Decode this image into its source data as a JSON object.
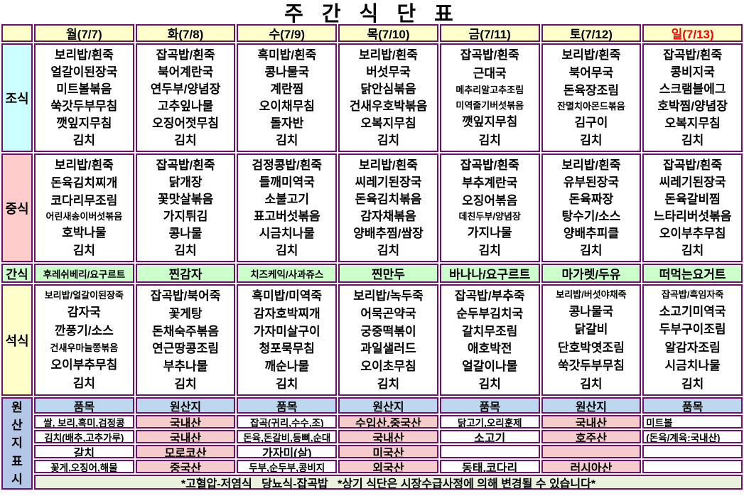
{
  "title": "주 간 식 단 표",
  "colors": {
    "border": "#6B116B",
    "header_bg": "#FFFFCC",
    "breakfast_bg": "#CCFFFF",
    "lunch_bg": "#FFCCCC",
    "snack_bg": "#CCFFCC",
    "dinner_bg": "#FFFFCC",
    "origin_label_bg": "#B4C7E7",
    "origin_header_bg": "#BDD7EE",
    "origin_pink_bg": "#F4CCCC",
    "footer_bg": "#EBF1DE",
    "sunday_red": "#FF0000"
  },
  "day_header": {
    "corner": "",
    "days": [
      {
        "label": "월(7/7)"
      },
      {
        "label": "화(7/8)"
      },
      {
        "label": "수(7/9)"
      },
      {
        "label": "목(7/10)"
      },
      {
        "label": "금(7/11)"
      },
      {
        "label": "토(7/12)"
      },
      {
        "label": "일(7/13)",
        "red": true
      }
    ]
  },
  "meals": [
    {
      "id": "breakfast",
      "label": "조식",
      "bg": "#CCFFFF",
      "columns": [
        [
          "보리밥/흰죽",
          "얼갈이된장국",
          "미트볼볶음",
          "쑥갓두부무침",
          "깻잎지무침",
          "김치"
        ],
        [
          "잡곡밥/흰죽",
          "북어계란국",
          "연두부/양념장",
          "고추잎나물",
          "오징어젓무침",
          "김치"
        ],
        [
          "흑미밥/흰죽",
          "콩나물국",
          "계란찜",
          "오이채무침",
          "돌자반",
          "김치"
        ],
        [
          "보리밥/흰죽",
          "버섯무국",
          "닭안심볶음",
          "건새우호박볶음",
          "오복지무침",
          "김치"
        ],
        [
          "잡곡밥/흰죽",
          "근대국",
          {
            "t": "메추리알고추조림",
            "small": true
          },
          {
            "t": "미역줄기버섯볶음",
            "small": true
          },
          "깻잎지무침",
          "김치"
        ],
        [
          "보리밥/흰죽",
          "북어무국",
          "돈육장조림",
          {
            "t": "잔멸치아몬드볶음",
            "small": true
          },
          "김구이",
          "김치"
        ],
        [
          "잡곡밥/흰죽",
          "콩비지국",
          "스크램블에그",
          "호박찜/양념장",
          "오복지무침",
          "김치"
        ]
      ]
    },
    {
      "id": "lunch",
      "label": "중식",
      "bg": "#FFCCCC",
      "columns": [
        [
          "보리밥/흰죽",
          "돈육김치찌개",
          "코다리무조림",
          {
            "t": "어린새송이버섯볶음",
            "small": true
          },
          "호박나물",
          "김치"
        ],
        [
          "잡곡밥/흰죽",
          "닭개장",
          "꽃맛살볶음",
          "가지튀김",
          "콩나물",
          "김치"
        ],
        [
          "검정콩밥/흰죽",
          "들깨미역국",
          "소불고기",
          "표고버섯볶음",
          "시금치나물",
          "김치"
        ],
        [
          "보리밥/흰죽",
          "씨레기된장국",
          "돈육김치볶음",
          "감자채볶음",
          "양배추찜/쌈장",
          "김치"
        ],
        [
          "잡곡밥/흰죽",
          "부추계란국",
          "오징어볶음",
          {
            "t": "데친두부/양념장",
            "small": true
          },
          "가지나물",
          "김치"
        ],
        [
          "보리밥/흰죽",
          "유부된장국",
          "돈육짜장",
          "탕수기/소스",
          "양배추피클",
          "김치"
        ],
        [
          "잡곡밥/흰죽",
          "씨레기된장국",
          "돈육갈비찜",
          "느타리버섯볶음",
          "오이부추무침",
          "김치"
        ]
      ]
    },
    {
      "id": "dinner",
      "label": "석식",
      "bg": "#FFFFCC",
      "columns": [
        [
          {
            "t": "보리밥/얼갈이된장죽",
            "small": true
          },
          "감자국",
          "깐풍기/소스",
          {
            "t": "건새우마늘쫑볶음",
            "small": true
          },
          "오이부추무침",
          "김치"
        ],
        [
          "잡곡밥/북어죽",
          "꽃게탕",
          "돈채숙주볶음",
          "연근땅콩조림",
          "부추나물",
          "김치"
        ],
        [
          "흑미밥/미역죽",
          "감자호박찌개",
          "가자미살구이",
          "청포묵무침",
          "깨순나물",
          "김치"
        ],
        [
          "보리밥/녹두죽",
          "어묵곤약국",
          "궁중떡볶이",
          "과일샐러드",
          "오이초무침",
          "김치"
        ],
        [
          "잡곡밥/부추죽",
          "순두부김치국",
          "갈치무조림",
          "애호박전",
          "얼갈이나물",
          "김치"
        ],
        [
          {
            "t": "보리밥/버섯야채죽",
            "small": true
          },
          "콩나물국",
          "닭갈비",
          "단호박엿조림",
          "쑥갓두부무침",
          "김치"
        ],
        [
          {
            "t": "잡곡밥/흑임자죽",
            "small": true
          },
          "소고기미역국",
          "두부구이조림",
          "알감자조림",
          "시금치나물",
          "김치"
        ]
      ]
    }
  ],
  "snack": {
    "label": "간식",
    "bg": "#CCFFCC",
    "items": [
      {
        "t": "후레쉬베리/요구르트",
        "small": true
      },
      "찐감자",
      {
        "t": "치즈케익/사과쥬스",
        "small": true
      },
      "찐만두",
      "바나나/요구르트",
      "마가렛/두유",
      "떠먹는요거트"
    ]
  },
  "origin": {
    "label": "원산지표시",
    "headers": [
      "품목",
      "원산지",
      "품목",
      "원산지",
      "품목",
      "원산지",
      "품목"
    ],
    "rows": [
      [
        {
          "t": "쌀, 보리,흑미,검정콩",
          "small": true
        },
        "국내산",
        {
          "t": "잡곡(귀리,수수,조)",
          "small": true
        },
        "수입산,중국산",
        {
          "t": "닭고기,오리훈제",
          "small": true
        },
        "국내산",
        {
          "t": "미트볼",
          "small": true,
          "left": true
        }
      ],
      [
        {
          "t": "김치(배추,고추가루)",
          "small": true
        },
        "국내산",
        {
          "t": "돈육,돈갈비,등뼈,순대",
          "small": true
        },
        "국내산",
        "소고기",
        "호주산",
        {
          "t": "(돈육/계육:국내산)",
          "small": true,
          "left": true
        }
      ],
      [
        "갈치",
        "모로코산",
        "가자미(살)",
        "미국산",
        "",
        "",
        ""
      ],
      [
        {
          "t": "꽃게,오징어,해물",
          "small": true
        },
        "중국산",
        {
          "t": "두부,순두부,콩비지",
          "small": true
        },
        "외국산",
        "동태,코다리",
        "러시아산",
        ""
      ]
    ]
  },
  "footer": "*고혈압-저염식   당뇨식-잡곡밥   *상기 식단은 시장수급사정에 의해 변경될 수 있습니다*"
}
